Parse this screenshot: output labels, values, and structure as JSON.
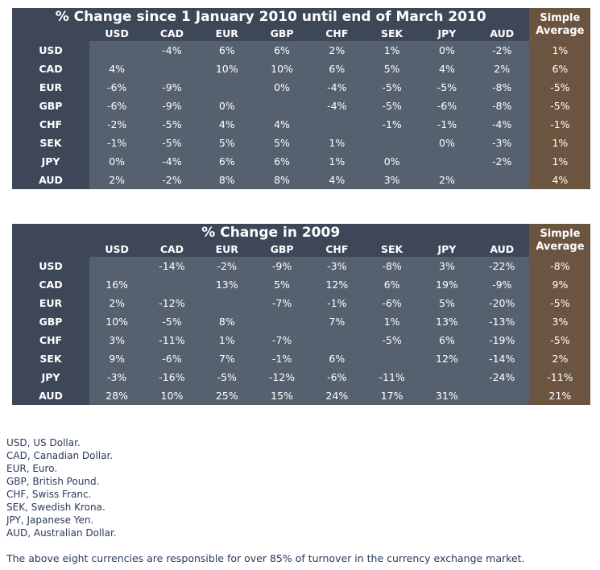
{
  "columns": [
    "USD",
    "CAD",
    "EUR",
    "GBP",
    "CHF",
    "SEK",
    "JPY",
    "AUD"
  ],
  "avg_label_1": "Simple",
  "avg_label_2": "Average",
  "tables": [
    {
      "title": "% Change since 1 January 2010 until end of March 2010",
      "rows": [
        {
          "label": "USD",
          "cells": [
            "",
            "-4%",
            "6%",
            "6%",
            "2%",
            "1%",
            "0%",
            "-2%"
          ],
          "avg": "1%"
        },
        {
          "label": "CAD",
          "cells": [
            "4%",
            "",
            "10%",
            "10%",
            "6%",
            "5%",
            "4%",
            "2%"
          ],
          "avg": "6%"
        },
        {
          "label": "EUR",
          "cells": [
            "-6%",
            "-9%",
            "",
            "0%",
            "-4%",
            "-5%",
            "-5%",
            "-8%"
          ],
          "avg": "-5%"
        },
        {
          "label": "GBP",
          "cells": [
            "-6%",
            "-9%",
            "0%",
            "",
            "-4%",
            "-5%",
            "-6%",
            "-8%"
          ],
          "avg": "-5%"
        },
        {
          "label": "CHF",
          "cells": [
            "-2%",
            "-5%",
            "4%",
            "4%",
            "",
            "-1%",
            "-1%",
            "-4%"
          ],
          "avg": "-1%"
        },
        {
          "label": "SEK",
          "cells": [
            "-1%",
            "-5%",
            "5%",
            "5%",
            "1%",
            "",
            "0%",
            "-3%"
          ],
          "avg": "1%"
        },
        {
          "label": "JPY",
          "cells": [
            "0%",
            "-4%",
            "6%",
            "6%",
            "1%",
            "0%",
            "",
            "-2%"
          ],
          "avg": "1%"
        },
        {
          "label": "AUD",
          "cells": [
            "2%",
            "-2%",
            "8%",
            "8%",
            "4%",
            "3%",
            "2%",
            ""
          ],
          "avg": "4%"
        }
      ]
    },
    {
      "title": "% Change in 2009",
      "rows": [
        {
          "label": "USD",
          "cells": [
            "",
            "-14%",
            "-2%",
            "-9%",
            "-3%",
            "-8%",
            "3%",
            "-22%"
          ],
          "avg": "-8%"
        },
        {
          "label": "CAD",
          "cells": [
            "16%",
            "",
            "13%",
            "5%",
            "12%",
            "6%",
            "19%",
            "-9%"
          ],
          "avg": "9%"
        },
        {
          "label": "EUR",
          "cells": [
            "2%",
            "-12%",
            "",
            "-7%",
            "-1%",
            "-6%",
            "5%",
            "-20%"
          ],
          "avg": "-5%"
        },
        {
          "label": "GBP",
          "cells": [
            "10%",
            "-5%",
            "8%",
            "",
            "7%",
            "1%",
            "13%",
            "-13%"
          ],
          "avg": "3%"
        },
        {
          "label": "CHF",
          "cells": [
            "3%",
            "-11%",
            "1%",
            "-7%",
            "",
            "-5%",
            "6%",
            "-19%"
          ],
          "avg": "-5%"
        },
        {
          "label": "SEK",
          "cells": [
            "9%",
            "-6%",
            "7%",
            "-1%",
            "6%",
            "",
            "12%",
            "-14%"
          ],
          "avg": "2%"
        },
        {
          "label": "JPY",
          "cells": [
            "-3%",
            "-16%",
            "-5%",
            "-12%",
            "-6%",
            "-11%",
            "",
            "-24%"
          ],
          "avg": "-11%"
        },
        {
          "label": "AUD",
          "cells": [
            "28%",
            "10%",
            "25%",
            "15%",
            "24%",
            "17%",
            "31%",
            ""
          ],
          "avg": "21%"
        }
      ]
    }
  ],
  "notes": [
    "USD, US Dollar.",
    "CAD, Canadian Dollar.",
    "EUR, Euro.",
    "GBP, British Pound.",
    "CHF, Swiss Franc.",
    "SEK, Swedish Krona.",
    "JPY, Japanese Yen.",
    "AUD, Australian Dollar."
  ],
  "footer": "The above eight currencies are responsible for over 85% of turnover in the currency exchange market.",
  "colors": {
    "header_bg": "#3e4758",
    "cell_bg": "#566170",
    "average_bg": "#6c5540",
    "text": "#ffffff",
    "notes_text": "#2a3a5a"
  }
}
